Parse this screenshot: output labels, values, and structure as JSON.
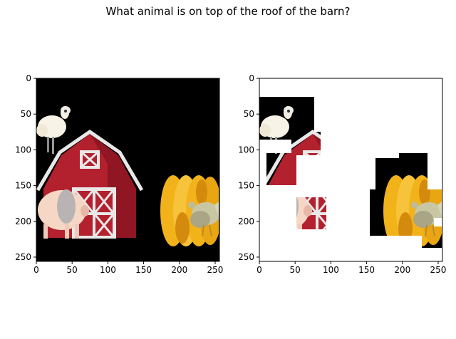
{
  "figure": {
    "suptitle": "What animal is on top of the roof of the barn?"
  },
  "chart_data": [
    {
      "type": "image",
      "panel": "left",
      "description": "farm scene: sheep standing on barn roof, red barn, pig, hay bales, chicken on black background",
      "xlim": [
        0,
        256
      ],
      "ylim": [
        256,
        0
      ],
      "xticks": [
        0,
        50,
        100,
        150,
        200,
        250
      ],
      "yticks": [
        0,
        50,
        100,
        150,
        200,
        250
      ],
      "background": "#000000"
    },
    {
      "type": "image",
      "panel": "right",
      "description": "same scene with white mask leaving only patches (sheep, roof, pig, hay, chicken) visible",
      "xlim": [
        0,
        256
      ],
      "ylim": [
        256,
        0
      ],
      "xticks": [
        0,
        50,
        100,
        150,
        200,
        250
      ],
      "yticks": [
        0,
        50,
        100,
        150,
        200,
        250
      ],
      "background": "#ffffff"
    }
  ],
  "colors": {
    "barn_red": "#b3202e",
    "barn_trim": "#e8e8e8",
    "hay": "#f2b21a",
    "sheep": "#f7f3e6",
    "pig": "#f6d7c6",
    "chicken": "#c9c6a4"
  }
}
